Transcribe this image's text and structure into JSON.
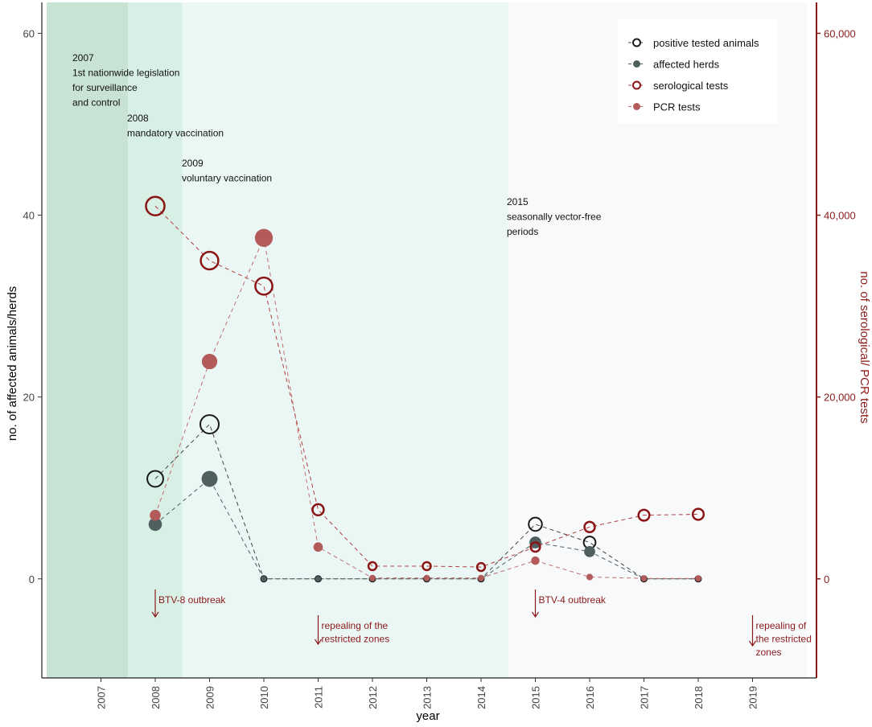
{
  "chart_data": {
    "type": "line",
    "title": "",
    "xlabel": "year",
    "ylabel_left": "no. of affected animals/herds",
    "ylabel_right": "no. of serological/ PCR tests",
    "categories": [
      "2007",
      "2008",
      "2009",
      "2010",
      "2011",
      "2012",
      "2013",
      "2014",
      "2015",
      "2016",
      "2017",
      "2018",
      "2019"
    ],
    "ylim_left": [
      -10.9,
      63.4
    ],
    "ylim_right": [
      -10900,
      63400
    ],
    "yticks_left": [
      0,
      20,
      40,
      60
    ],
    "yticks_left_labels": [
      "0",
      "20",
      "40",
      "60"
    ],
    "yticks_right": [
      0,
      20000,
      40000,
      60000
    ],
    "yticks_right_labels": [
      "0",
      "20,000",
      "40,000",
      "60,000"
    ],
    "grid": false,
    "legend_position": "top-right",
    "colors": {
      "positive": "#1a1a1a",
      "herds": "#4f5f5f",
      "serological": "#8b1414",
      "pcr": "#b35a5a",
      "axis_right": "#8b1a1a",
      "period1": "#c8e3d3",
      "period2": "#d8efe5",
      "period3": "#ebf7f5",
      "period4": "#f7f9fb"
    },
    "series": [
      {
        "name": "positive tested animals",
        "axis": "left",
        "marker": "open-circle",
        "x": [
          "2008",
          "2009",
          "2010",
          "2011",
          "2012",
          "2013",
          "2014",
          "2015",
          "2016",
          "2017",
          "2018"
        ],
        "values": [
          11,
          17,
          0,
          0,
          0,
          0,
          0,
          6,
          4,
          0,
          0
        ]
      },
      {
        "name": "affected herds",
        "axis": "left",
        "marker": "filled-circle",
        "x": [
          "2008",
          "2009",
          "2010",
          "2011",
          "2012",
          "2013",
          "2014",
          "2015",
          "2016",
          "2017",
          "2018"
        ],
        "values": [
          6,
          11,
          0,
          0,
          0,
          0,
          0,
          4,
          3,
          0,
          0
        ]
      },
      {
        "name": "serological tests",
        "axis": "right",
        "marker": "open-circle",
        "x": [
          "2008",
          "2009",
          "2010",
          "2011",
          "2012",
          "2013",
          "2014",
          "2015",
          "2016",
          "2017",
          "2018"
        ],
        "values": [
          41000,
          35000,
          32200,
          7600,
          1400,
          1400,
          1300,
          3500,
          5700,
          7000,
          7100
        ]
      },
      {
        "name": "PCR tests",
        "axis": "right",
        "marker": "filled-circle",
        "x": [
          "2008",
          "2009",
          "2010",
          "2011",
          "2012",
          "2013",
          "2014",
          "2015",
          "2016",
          "2017",
          "2018"
        ],
        "values": [
          7000,
          23900,
          37500,
          3500,
          100,
          100,
          100,
          2000,
          200,
          50,
          50
        ]
      }
    ],
    "periods": [
      {
        "label": "2007",
        "from": "2006.0",
        "to": "2007.5"
      },
      {
        "label": "2008",
        "from": "2007.5",
        "to": "2008.5"
      },
      {
        "label": "2009",
        "from": "2008.5",
        "to": "2014.5"
      },
      {
        "label": "2015",
        "from": "2014.5",
        "to": "2020.0"
      }
    ],
    "annotations": [
      {
        "id": "ann-2007",
        "lines": [
          "2007",
          "1st nationwide legislation",
          "for surveillance",
          "and control"
        ]
      },
      {
        "id": "ann-2008",
        "lines": [
          "2008",
          "mandatory vaccination"
        ]
      },
      {
        "id": "ann-2009",
        "lines": [
          "2009",
          "voluntary vaccination"
        ]
      },
      {
        "id": "ann-2015",
        "lines": [
          "2015",
          "seasonally vector-free",
          "periods"
        ]
      }
    ],
    "events": [
      {
        "id": "event-btv8",
        "year": "2008",
        "lines": [
          "BTV-8 outbreak"
        ]
      },
      {
        "id": "event-repeal-2011",
        "year": "2011",
        "lines": [
          "repealing of the",
          "restricted zones"
        ]
      },
      {
        "id": "event-btv4",
        "year": "2015",
        "lines": [
          "BTV-4 outbreak"
        ]
      },
      {
        "id": "event-repeal-2019",
        "year": "2019",
        "lines": [
          "repealing of",
          "the restricted",
          "zones"
        ]
      }
    ]
  }
}
